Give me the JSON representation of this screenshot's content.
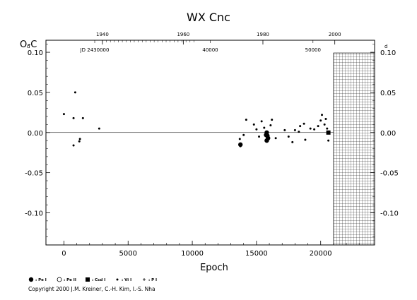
{
  "chart_data": {
    "type": "scatter",
    "title": "WX Cnc",
    "ylabel": "O-C",
    "xlabel": "Epoch",
    "xlim": [
      -1400,
      24200
    ],
    "ylim": [
      -0.14,
      0.115
    ],
    "xticks": [
      {
        "v": 0,
        "label": "0"
      },
      {
        "v": 5000,
        "label": "5000"
      },
      {
        "v": 10000,
        "label": "10000"
      },
      {
        "v": 15000,
        "label": "15000"
      },
      {
        "v": 20000,
        "label": "20000"
      }
    ],
    "yticks_left": [
      {
        "v": 0.1,
        "label": "0.10"
      },
      {
        "v": 0.05,
        "label": "0.05"
      },
      {
        "v": 0.0,
        "label": "0.00"
      },
      {
        "v": -0.05,
        "label": "-0.05"
      },
      {
        "v": -0.1,
        "label": "-0.10"
      }
    ],
    "yticks_right": [
      {
        "v": 0.1,
        "label": "0.10"
      },
      {
        "v": 0.05,
        "label": "0.05"
      },
      {
        "v": 0.0,
        "label": "0.00"
      },
      {
        "v": -0.05,
        "label": "-0.05"
      },
      {
        "v": -0.1,
        "label": "-0.10"
      }
    ],
    "day_superscript": "d",
    "top_year_ticks": [
      {
        "v": 3000,
        "label": "1940"
      },
      {
        "v": 9300,
        "label": "1960"
      },
      {
        "v": 15500,
        "label": "1980"
      },
      {
        "v": 21100,
        "label": "2000"
      }
    ],
    "top_jd_labels": [
      {
        "v": 2400,
        "label": "JD 2430000"
      },
      {
        "v": 11400,
        "label": "40000"
      },
      {
        "v": 19400,
        "label": "50000"
      }
    ],
    "hatched_region": {
      "x_from": 21000,
      "x_to": 24200
    },
    "zero_line": 0,
    "series": [
      {
        "name": "Vi I",
        "marker": "small-dot",
        "points": [
          [
            0,
            0.023
          ],
          [
            750,
            0.018
          ],
          [
            880,
            0.05
          ],
          [
            1480,
            0.018
          ],
          [
            1250,
            -0.008
          ],
          [
            1200,
            -0.011
          ],
          [
            750,
            -0.016
          ],
          [
            2750,
            0.005
          ],
          [
            13700,
            -0.008
          ],
          [
            13750,
            -0.017
          ],
          [
            14000,
            -0.003
          ],
          [
            14200,
            0.016
          ],
          [
            14800,
            0.01
          ],
          [
            15000,
            0.004
          ],
          [
            15200,
            -0.005
          ],
          [
            15400,
            0.014
          ],
          [
            15600,
            0.006
          ],
          [
            15900,
            -0.009
          ],
          [
            16100,
            0.009
          ],
          [
            16200,
            0.016
          ],
          [
            16500,
            -0.007
          ],
          [
            17200,
            0.003
          ],
          [
            17500,
            -0.005
          ],
          [
            17800,
            -0.012
          ],
          [
            18000,
            0.003
          ],
          [
            18300,
            0.001
          ],
          [
            18400,
            0.008
          ],
          [
            18700,
            0.011
          ],
          [
            18800,
            -0.009
          ],
          [
            19200,
            0.005
          ],
          [
            19500,
            0.004
          ],
          [
            19800,
            0.008
          ],
          [
            20000,
            0.015
          ],
          [
            20100,
            0.022
          ],
          [
            20300,
            0.01
          ],
          [
            20400,
            0.017
          ],
          [
            20600,
            -0.01
          ],
          [
            20500,
            0.005
          ]
        ]
      },
      {
        "name": "Pe I",
        "marker": "big-dot",
        "points": [
          [
            13750,
            -0.015
          ],
          [
            15800,
            0.0
          ],
          [
            15850,
            -0.004
          ],
          [
            15900,
            -0.007
          ],
          [
            15750,
            -0.003
          ],
          [
            15800,
            -0.01
          ]
        ]
      },
      {
        "name": "Ccd I",
        "marker": "square",
        "points": [
          [
            20600,
            0.0
          ]
        ]
      }
    ],
    "legend": [
      {
        "marker": "big-dot",
        "label": ": Pe I"
      },
      {
        "marker": "open-circle",
        "label": ": Pe II"
      },
      {
        "marker": "square",
        "label": ": Ccd I"
      },
      {
        "marker": "small-dot",
        "label": ": Vi I"
      },
      {
        "marker": "plus",
        "label": ": P I"
      }
    ]
  },
  "copyright": "Copyright 2000 J.M. Kreiner, C.-H. Kim, I.-S. Nha"
}
